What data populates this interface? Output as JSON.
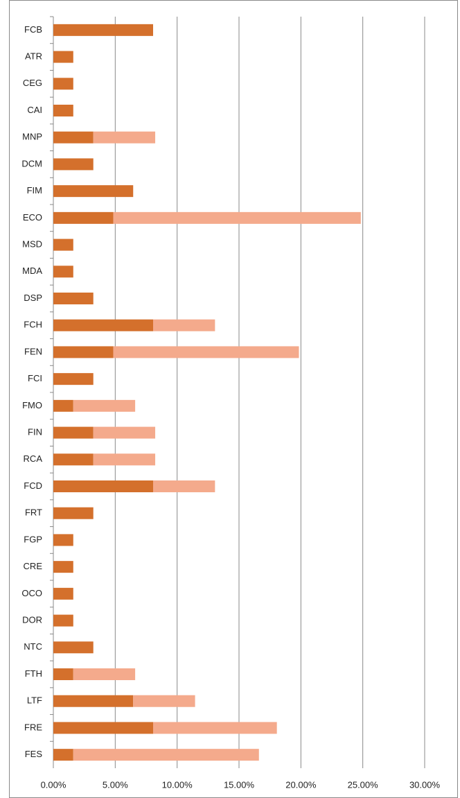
{
  "chart_data": {
    "type": "stacked-bar-horizontal",
    "categories": [
      "FCB",
      "ATR",
      "CEG",
      "CAI",
      "MNP",
      "DCM",
      "FIM",
      "ECO",
      "MSD",
      "MDA",
      "DSP",
      "FCH",
      "FEN",
      "FCI",
      "FMO",
      "FIN",
      "RCA",
      "FCD",
      "FRT",
      "FGP",
      "CRE",
      "OCO",
      "DOR",
      "NTC",
      "FTH",
      "LTF",
      "FRE",
      "FES"
    ],
    "series": [
      {
        "color": "#d4702c",
        "values": [
          8.06,
          1.61,
          1.61,
          1.61,
          3.23,
          3.23,
          6.45,
          4.84,
          1.61,
          1.61,
          3.23,
          8.06,
          4.84,
          3.23,
          1.61,
          3.23,
          3.23,
          8.06,
          3.23,
          1.61,
          1.61,
          1.61,
          1.61,
          3.23,
          1.61,
          6.45,
          8.06,
          1.61
        ]
      },
      {
        "color": "#f4aa8c",
        "values": [
          null,
          null,
          null,
          null,
          5,
          null,
          null,
          20,
          null,
          null,
          null,
          5,
          15,
          null,
          5,
          5,
          5,
          5,
          null,
          null,
          null,
          null,
          null,
          null,
          5,
          5,
          10,
          15
        ]
      }
    ],
    "xlim": [
      0,
      30
    ],
    "xticks": [
      {
        "value": 0,
        "label": "0.00%"
      },
      {
        "value": 5,
        "label": "5.00%"
      },
      {
        "value": 10,
        "label": "10.00%"
      },
      {
        "value": 15,
        "label": "15.00%"
      },
      {
        "value": 20,
        "label": "20.00%"
      },
      {
        "value": 25,
        "label": "25.00%"
      },
      {
        "value": 30,
        "label": "30.00%"
      }
    ],
    "grid": true
  }
}
